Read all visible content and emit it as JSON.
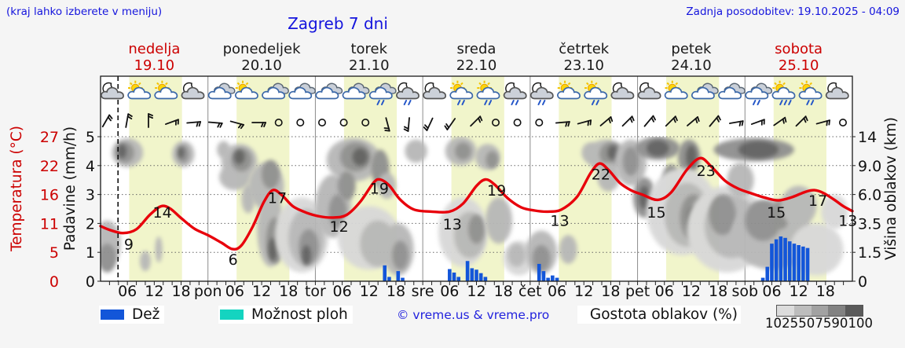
{
  "header": {
    "menu_hint": "(kraj lahko izberete v meniju)",
    "title": "Zagreb 7 dni",
    "last_update": "Zadnja posodobitev: 19.10.2025 - 04:09"
  },
  "days": [
    {
      "name": "nedelja",
      "date": "19.10",
      "accent": true
    },
    {
      "name": "ponedeljek",
      "date": "20.10",
      "accent": false
    },
    {
      "name": "torek",
      "date": "21.10",
      "accent": false
    },
    {
      "name": "sreda",
      "date": "22.10",
      "accent": false
    },
    {
      "name": "četrtek",
      "date": "23.10",
      "accent": false
    },
    {
      "name": "petek",
      "date": "24.10",
      "accent": false
    },
    {
      "name": "sobota",
      "date": "25.10",
      "accent": true
    }
  ],
  "axes": {
    "temperature": {
      "label": "Temperatura (°C)",
      "ticks": [
        "27",
        "22",
        "16",
        "11",
        "5",
        "0"
      ]
    },
    "precipitation": {
      "label": "Padavine (mm/h)",
      "ticks": [
        "5",
        "4",
        "3",
        "2",
        "1",
        "0"
      ]
    },
    "cloud_height": {
      "label": "Višina oblakov (km)",
      "ticks": [
        "14",
        "9.0",
        "6.0",
        "3.5",
        "1.5",
        "0"
      ]
    },
    "time": {
      "hour_labels": [
        "06",
        "12",
        "18"
      ],
      "day_abbrs": [
        "pon",
        "tor",
        "sre",
        "čet",
        "pet",
        "sob"
      ]
    }
  },
  "legend": {
    "rain": "Dež",
    "showers": "Možnost ploh",
    "copyright": "© vreme.us & vreme.pro",
    "cloud_density": "Gostota oblakov (%)",
    "density_ticks": [
      "10",
      "25",
      "50",
      "75",
      "90",
      "100"
    ]
  },
  "colors": {
    "accent_text": "#cc0000",
    "blue_text": "#1414dd",
    "curve": "#e8000b",
    "rain_bar": "#1356d9",
    "showers_swatch": "#14d4c0",
    "day_band": "#f1f5cb",
    "cloud_shades": [
      "#d8d8d8",
      "#b7b7b7",
      "#8f8f8f",
      "#5f5f5f"
    ],
    "density_gradient": [
      "#dcdcdc",
      "#bdbdbd",
      "#a2a2a2",
      "#828282",
      "#5a5a5a"
    ]
  },
  "chart_data": {
    "type": "meteogram",
    "x_unit": "hours from 19.10.2025 00:00, 7 days, 24 h/day",
    "temp_axis_c_per_unit": 5.4,
    "cloud_height_scale_km": [
      [
        0,
        0
      ],
      [
        1,
        1.5
      ],
      [
        2,
        3.5
      ],
      [
        3,
        6.0
      ],
      [
        4,
        9.0
      ],
      [
        5,
        14
      ]
    ],
    "now_line_h": 3.9,
    "daylight_band_h": {
      "start": 6.4,
      "end": 18.2
    },
    "temperature_c": {
      "points": [
        [
          0,
          10.3
        ],
        [
          2,
          9.6
        ],
        [
          5,
          9.0
        ],
        [
          8,
          9.7
        ],
        [
          11,
          12.4
        ],
        [
          13.5,
          14.0
        ],
        [
          15.5,
          13.6
        ],
        [
          18,
          11.8
        ],
        [
          21,
          9.8
        ],
        [
          24,
          8.6
        ],
        [
          27,
          7.2
        ],
        [
          29.5,
          6.0
        ],
        [
          31.5,
          6.7
        ],
        [
          34,
          10.2
        ],
        [
          36.5,
          14.8
        ],
        [
          38.5,
          17.0
        ],
        [
          40.5,
          16.1
        ],
        [
          43,
          14.0
        ],
        [
          46,
          12.8
        ],
        [
          49,
          12.1
        ],
        [
          52,
          11.9
        ],
        [
          55,
          12.4
        ],
        [
          58,
          14.8
        ],
        [
          61,
          18.4
        ],
        [
          62.5,
          19.0
        ],
        [
          64.5,
          17.9
        ],
        [
          67,
          15.2
        ],
        [
          70,
          13.4
        ],
        [
          74,
          13.0
        ],
        [
          78,
          13.0
        ],
        [
          81,
          14.5
        ],
        [
          84,
          17.8
        ],
        [
          86,
          19.0
        ],
        [
          88,
          18.1
        ],
        [
          91,
          15.5
        ],
        [
          94,
          13.8
        ],
        [
          97,
          13.2
        ],
        [
          100,
          13.0
        ],
        [
          103,
          13.4
        ],
        [
          106.5,
          15.8
        ],
        [
          109.5,
          20.2
        ],
        [
          111.5,
          22.0
        ],
        [
          113.5,
          20.8
        ],
        [
          116,
          18.4
        ],
        [
          118.5,
          17.0
        ],
        [
          121,
          16.2
        ],
        [
          124.5,
          15.2
        ],
        [
          127.5,
          16.6
        ],
        [
          131,
          20.8
        ],
        [
          134,
          23.0
        ],
        [
          136.5,
          21.4
        ],
        [
          139.5,
          18.8
        ],
        [
          142.5,
          17.3
        ],
        [
          145.5,
          16.4
        ],
        [
          148.5,
          15.6
        ],
        [
          151.5,
          15.1
        ],
        [
          154.5,
          15.7
        ],
        [
          157.5,
          16.7
        ],
        [
          159.5,
          17.0
        ],
        [
          161.5,
          16.5
        ],
        [
          164,
          15.2
        ],
        [
          166,
          14.0
        ],
        [
          168,
          13.1
        ]
      ],
      "curve_labels": [
        [
          "9",
          6.3,
          7.0
        ],
        [
          "14",
          13.8,
          12.9
        ],
        [
          "6",
          29.6,
          4.1
        ],
        [
          "17",
          39.5,
          15.6
        ],
        [
          "12",
          53.3,
          10.3
        ],
        [
          "19",
          62.3,
          17.4
        ],
        [
          "13",
          78.6,
          10.7
        ],
        [
          "19",
          88.5,
          17.0
        ],
        [
          "13",
          102.6,
          11.4
        ],
        [
          "22",
          111.8,
          20.0
        ],
        [
          "15",
          124.2,
          12.9
        ],
        [
          "23",
          135.3,
          20.7
        ],
        [
          "15",
          151.0,
          12.9
        ],
        [
          "17",
          160.3,
          15.1
        ],
        [
          "13",
          167.0,
          11.4
        ]
      ]
    },
    "precipitation_mm_h": [
      [
        63.5,
        0.55
      ],
      [
        64.5,
        0.15
      ],
      [
        66.5,
        0.35
      ],
      [
        67.5,
        0.12
      ],
      [
        78,
        0.42
      ],
      [
        79,
        0.3
      ],
      [
        80,
        0.15
      ],
      [
        82,
        0.7
      ],
      [
        83,
        0.45
      ],
      [
        84,
        0.4
      ],
      [
        85,
        0.28
      ],
      [
        86,
        0.15
      ],
      [
        98,
        0.6
      ],
      [
        99,
        0.35
      ],
      [
        100,
        0.12
      ],
      [
        101,
        0.2
      ],
      [
        102,
        0.12
      ],
      [
        148,
        0.12
      ],
      [
        149,
        0.5
      ],
      [
        150,
        1.3
      ],
      [
        151,
        1.45
      ],
      [
        152,
        1.55
      ],
      [
        153,
        1.5
      ],
      [
        154,
        1.38
      ],
      [
        155,
        1.3
      ],
      [
        156,
        1.25
      ],
      [
        157,
        1.2
      ],
      [
        158,
        1.15
      ]
    ],
    "weather_icons": [
      [
        3,
        "n"
      ],
      [
        9,
        "s"
      ],
      [
        15,
        "s"
      ],
      [
        21,
        "n"
      ],
      [
        27,
        "c"
      ],
      [
        33,
        "s"
      ],
      [
        39,
        "c"
      ],
      [
        45,
        "c"
      ],
      [
        51,
        "c"
      ],
      [
        57,
        "c"
      ],
      [
        63,
        "r"
      ],
      [
        69,
        "nr"
      ],
      [
        75,
        "n"
      ],
      [
        81,
        "sr"
      ],
      [
        87,
        "sr"
      ],
      [
        93,
        "nr"
      ],
      [
        99,
        "nr"
      ],
      [
        105,
        "s"
      ],
      [
        111,
        "sr"
      ],
      [
        117,
        "n"
      ],
      [
        123,
        "n"
      ],
      [
        129,
        "s"
      ],
      [
        135,
        "c"
      ],
      [
        141,
        "c"
      ],
      [
        147,
        "r"
      ],
      [
        153,
        "srh"
      ],
      [
        159,
        "sr"
      ],
      [
        165,
        "n"
      ]
    ],
    "icon_types": {
      "n": "moon-cloud",
      "s": "sun-cloud",
      "c": "clouds",
      "r": "clouds-rain",
      "nr": "moon-cloud-rain",
      "sr": "sun-cloud-rain",
      "srh": "sun-cloud-heavy-rain"
    },
    "wind": {
      "start_h": 1,
      "step_h": 4.85,
      "dirs": [
        30,
        10,
        0,
        70,
        85,
        95,
        105,
        90,
        "C",
        "C",
        "C",
        "C",
        "C",
        165,
        185,
        205,
        215,
        45,
        "C",
        "C",
        "C",
        85,
        75,
        50,
        45,
        40,
        45,
        50,
        40,
        80,
        70,
        55,
        45,
        75,
        "C"
      ]
    },
    "cloud_blobs_h_u_rh_ru_shade": [
      [
        1.5,
        1.3,
        3,
        0.8,
        2
      ],
      [
        1.5,
        0.8,
        2,
        0.5,
        3
      ],
      [
        6,
        4.45,
        3.5,
        0.5,
        2
      ],
      [
        5.5,
        4.45,
        2,
        0.35,
        3
      ],
      [
        4.8,
        4.5,
        1,
        0.25,
        4
      ],
      [
        10,
        0.7,
        1.2,
        0.35,
        2
      ],
      [
        13,
        1.1,
        0.8,
        0.45,
        2
      ],
      [
        18.5,
        4.4,
        2.5,
        0.45,
        2
      ],
      [
        18.5,
        4.4,
        1.3,
        0.3,
        3
      ],
      [
        18,
        4.45,
        0.7,
        0.2,
        4
      ],
      [
        27.5,
        4.55,
        1.5,
        0.3,
        2
      ],
      [
        30,
        3.6,
        3.5,
        0.45,
        2
      ],
      [
        31,
        4.15,
        4,
        0.6,
        2
      ],
      [
        31.5,
        4.2,
        2.3,
        0.4,
        3
      ],
      [
        31,
        4.3,
        1.2,
        0.25,
        4
      ],
      [
        33,
        2.85,
        1.5,
        0.5,
        2
      ],
      [
        37,
        3.3,
        4,
        0.8,
        2
      ],
      [
        38,
        3.7,
        2,
        0.5,
        3
      ],
      [
        38,
        1.8,
        3,
        1.3,
        2
      ],
      [
        39,
        1.4,
        2,
        0.8,
        3
      ],
      [
        38.5,
        1.1,
        1,
        0.4,
        4
      ],
      [
        45,
        1.6,
        6,
        1.3,
        1
      ],
      [
        46,
        1.5,
        4,
        1.0,
        2
      ],
      [
        46.5,
        1.2,
        2.2,
        0.6,
        3
      ],
      [
        46,
        0.9,
        1,
        0.35,
        4
      ],
      [
        52,
        2.6,
        4,
        1.1,
        2
      ],
      [
        53,
        2.4,
        2,
        0.6,
        3
      ],
      [
        56.5,
        4.2,
        6,
        0.75,
        2
      ],
      [
        57,
        4.3,
        3.5,
        0.5,
        3
      ],
      [
        58,
        4.3,
        1.7,
        0.3,
        4
      ],
      [
        55,
        3.3,
        2,
        0.5,
        3
      ],
      [
        62.5,
        3.9,
        2,
        0.65,
        3
      ],
      [
        64,
        3.3,
        2,
        0.45,
        2
      ],
      [
        60,
        1.5,
        7,
        1.1,
        1
      ],
      [
        62,
        1.3,
        4,
        0.8,
        2
      ],
      [
        66.5,
        1.1,
        3.5,
        0.9,
        2
      ],
      [
        67,
        0.9,
        1.8,
        0.5,
        3
      ],
      [
        70.5,
        4.5,
        2.5,
        0.4,
        2
      ],
      [
        80.5,
        4.5,
        3.5,
        0.5,
        2
      ],
      [
        81,
        4.5,
        1.8,
        0.3,
        3
      ],
      [
        86.5,
        4.3,
        2.8,
        0.45,
        2
      ],
      [
        87.5,
        4.2,
        1.4,
        0.3,
        3
      ],
      [
        81,
        1.7,
        5.5,
        1.2,
        1
      ],
      [
        82.5,
        1.6,
        3.5,
        0.8,
        2
      ],
      [
        84,
        1.8,
        1.8,
        0.5,
        3
      ],
      [
        89,
        2.1,
        3,
        0.8,
        2
      ],
      [
        93.5,
        0.8,
        3.5,
        0.6,
        1
      ],
      [
        93,
        0.9,
        2,
        0.4,
        2
      ],
      [
        98.5,
        1.0,
        3.5,
        0.75,
        2
      ],
      [
        98.5,
        0.8,
        2,
        0.45,
        3
      ],
      [
        104.5,
        1.1,
        2,
        0.5,
        2
      ],
      [
        109.5,
        4.45,
        2,
        0.35,
        2
      ],
      [
        113,
        4.35,
        4.5,
        0.55,
        2
      ],
      [
        114,
        4.4,
        2.5,
        0.4,
        3
      ],
      [
        114.5,
        4.45,
        1.2,
        0.25,
        4
      ],
      [
        113.5,
        3.6,
        2.5,
        0.5,
        2
      ],
      [
        118.5,
        4.1,
        3.5,
        0.8,
        2
      ],
      [
        118.5,
        4.15,
        1.8,
        0.5,
        3
      ],
      [
        121.5,
        2.9,
        2.5,
        0.7,
        3
      ],
      [
        121.5,
        2.9,
        1.2,
        0.4,
        4
      ],
      [
        124.5,
        4.6,
        5,
        0.4,
        3
      ],
      [
        124.5,
        4.6,
        2.5,
        0.28,
        4
      ],
      [
        127.5,
        3.5,
        2,
        0.55,
        3
      ],
      [
        131.5,
        4.3,
        2.5,
        0.6,
        3
      ],
      [
        132,
        4.3,
        1.2,
        0.4,
        4
      ],
      [
        130,
        2.4,
        8,
        1.5,
        1
      ],
      [
        131,
        2.3,
        5,
        1.1,
        2
      ],
      [
        132.5,
        2.2,
        3,
        0.8,
        3
      ],
      [
        132.5,
        2.1,
        1.5,
        0.5,
        4
      ],
      [
        140,
        1.8,
        9,
        1.5,
        1
      ],
      [
        141,
        1.9,
        6,
        1.1,
        2
      ],
      [
        139,
        2.3,
        3,
        0.7,
        3
      ],
      [
        146,
        4.55,
        9,
        0.4,
        3
      ],
      [
        147,
        4.55,
        4.5,
        0.3,
        4
      ],
      [
        143,
        3.5,
        3,
        0.6,
        2
      ],
      [
        150,
        1.6,
        9,
        1.2,
        2
      ],
      [
        148,
        2.1,
        4,
        0.7,
        3
      ],
      [
        152,
        2.3,
        2,
        0.5,
        3
      ],
      [
        156,
        2.6,
        4,
        0.7,
        2
      ],
      [
        160,
        1.1,
        6,
        0.9,
        1
      ],
      [
        164,
        2.4,
        3,
        0.6,
        1
      ]
    ]
  }
}
